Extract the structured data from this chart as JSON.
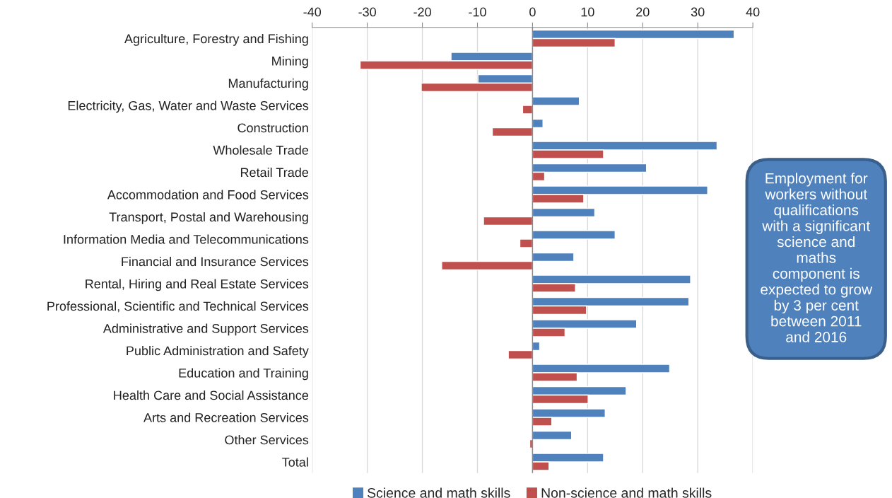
{
  "chart_data": {
    "type": "bar",
    "orientation": "horizontal",
    "categories": [
      "Agriculture, Forestry and Fishing",
      "Mining",
      "Manufacturing",
      "Electricity, Gas, Water and Waste Services",
      "Construction",
      "Wholesale Trade",
      "Retail Trade",
      "Accommodation and Food Services",
      "Transport, Postal and Warehousing",
      "Information Media and Telecommunications",
      "Financial and Insurance Services",
      "Rental, Hiring and Real Estate Services",
      "Professional, Scientific and Technical Services",
      "Administrative and Support Services",
      "Public Administration and Safety",
      "Education and Training",
      "Health Care and Social Assistance",
      "Arts and Recreation Services",
      "Other Services",
      "Total"
    ],
    "series": [
      {
        "name": "Science and math skills",
        "color": "#4f81bd",
        "values": [
          36.6,
          -14.8,
          -9.9,
          8.5,
          1.9,
          33.5,
          20.7,
          31.8,
          11.3,
          15.0,
          7.5,
          28.7,
          28.4,
          18.9,
          1.3,
          24.9,
          17.0,
          13.2,
          7.1,
          12.9
        ]
      },
      {
        "name": "Non-science and math skills",
        "color": "#c0504d",
        "values": [
          15.0,
          -31.3,
          -20.2,
          -1.8,
          -7.3,
          12.9,
          2.2,
          9.3,
          -8.9,
          -2.3,
          -16.5,
          7.8,
          9.8,
          5.9,
          -4.4,
          8.1,
          10.1,
          3.5,
          -0.5,
          3.0
        ]
      }
    ],
    "xlim": [
      -40,
      40
    ],
    "xticks": [
      -40,
      -30,
      -20,
      -10,
      0,
      10,
      20,
      30,
      40
    ],
    "grid": "x",
    "legend": "bottom",
    "annotations": [
      "Employment for workers without qualifications with a significant science and maths component is expected to grow by 3 per cent between 2011 and 2016"
    ]
  }
}
